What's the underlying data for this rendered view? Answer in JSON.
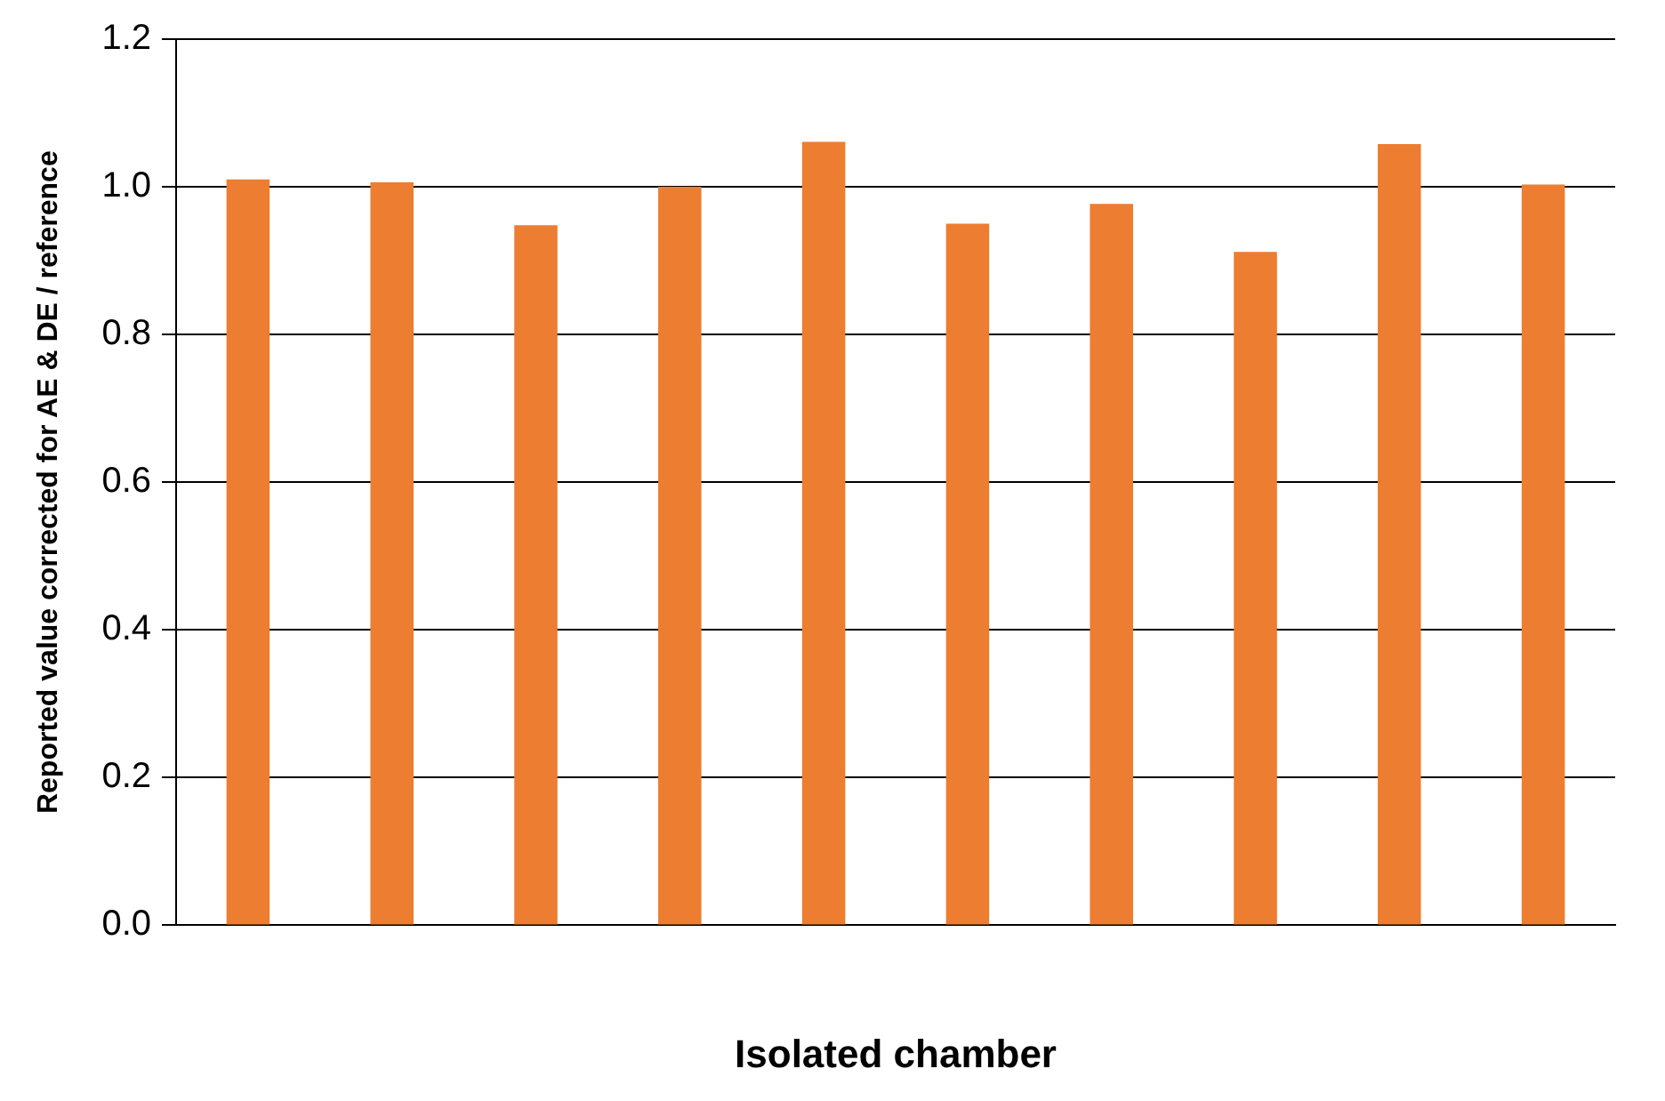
{
  "chart_data": {
    "type": "bar",
    "xlabel": "Isolated chamber",
    "ylabel": "Reported value corrected for AE & DE / reference",
    "categories": [
      null,
      null,
      null,
      null,
      null,
      null,
      null,
      null,
      null,
      null
    ],
    "values": [
      1.01,
      1.006,
      0.948,
      1.0,
      1.061,
      0.95,
      0.977,
      0.912,
      1.058,
      1.003
    ],
    "color": "#ed7d31",
    "ylim": [
      0,
      1.2
    ],
    "yticks": [
      {
        "value": 0,
        "label": "0.0"
      },
      {
        "value": 0.2,
        "label": "0.2"
      },
      {
        "value": 0.4,
        "label": "0.4"
      },
      {
        "value": 0.6,
        "label": "0.6"
      },
      {
        "value": 0.8,
        "label": "0.8"
      },
      {
        "value": 1,
        "label": "1.0"
      },
      {
        "value": 1.2,
        "label": "1.2"
      }
    ],
    "grid": "y",
    "legend": false
  }
}
